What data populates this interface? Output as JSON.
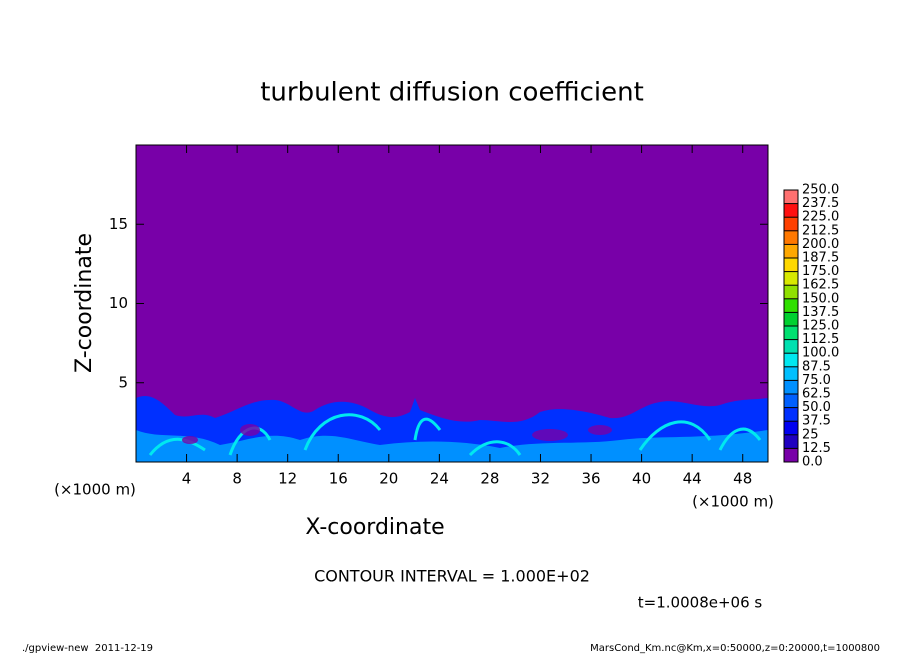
{
  "chart_data": {
    "type": "contour",
    "title": "turbulent diffusion coefficient",
    "x_label": "X-coordinate",
    "y_label": "Z-coordinate",
    "x_unit": "(×1000 m)",
    "x_unit_right": "(×1000 m)",
    "xlim": [
      0,
      50
    ],
    "xticks": [
      4,
      8,
      12,
      16,
      20,
      24,
      28,
      32,
      36,
      40,
      44,
      48
    ],
    "ylim": [
      0,
      20
    ],
    "yticks": [
      5,
      10,
      15
    ],
    "levels": [
      {
        "value": 0,
        "label": "0.0"
      },
      {
        "value": 12.5,
        "label": "12.5"
      },
      25,
      {
        "value": 37.5,
        "label": "37.5"
      },
      {
        "value": 50,
        "label": "50.0"
      },
      {
        "value": 62.5,
        "label": "62.5"
      },
      {
        "value": 75,
        "label": "75.0"
      },
      {
        "value": 87.5,
        "label": "87.5"
      },
      {
        "value": 100,
        "label": "100.0"
      },
      {
        "value": 112.5,
        "label": "112.5"
      },
      {
        "value": 125,
        "label": "125.0"
      },
      {
        "value": 137.5,
        "label": "137.5"
      },
      {
        "value": 150,
        "label": "150.0"
      },
      {
        "value": 162.5,
        "label": "162.5"
      },
      {
        "value": 175,
        "label": "175.0"
      },
      {
        "value": 187.5,
        "label": "187.5"
      },
      {
        "value": 200,
        "label": "200.0"
      },
      {
        "value": 212.5,
        "label": "212.5"
      },
      {
        "value": 225,
        "label": "225.0"
      },
      {
        "value": 237.5,
        "label": "237.5"
      },
      {
        "value": 250,
        "label": "250.0"
      }
    ],
    "colors": [
      "#7800a8",
      "#2000c0",
      "#0000f0",
      "#0030ff",
      "#0060ff",
      "#0090ff",
      "#00c0ff",
      "#00e8f0",
      "#00e0b0",
      "#00e070",
      "#00d030",
      "#30e000",
      "#90e000",
      "#d8e800",
      "#ffd800",
      "#ffa800",
      "#ff7800",
      "#ff4000",
      "#ff1010",
      "#ff7070"
    ],
    "contour_interval_note": "CONTOUR INTERVAL = 1.000E+02",
    "time_note": "t=1.0008e+06 s",
    "footer_left": "./gpview-new  2011-12-19",
    "footer_right": "MarsCond_Km.nc@Km,x=0:50000,z=0:20000,t=1000800"
  }
}
